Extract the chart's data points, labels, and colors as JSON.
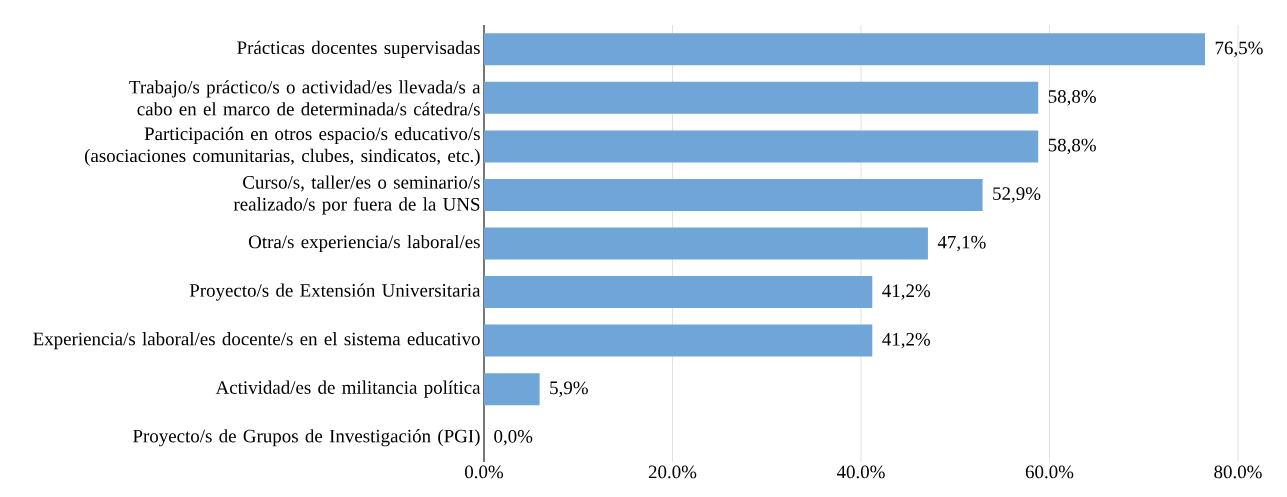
{
  "chart_data": {
    "type": "bar",
    "orientation": "horizontal",
    "categories": [
      "Prácticas docentes supervisadas",
      "Trabajo/s práctico/s o actividad/es llevada/s a cabo en el marco de determinada/s cátedra/s",
      "Participación en otros espacio/s educativo/s (asociaciones comunitarias, clubes, sindicatos, etc.)",
      "Curso/s, taller/es o seminario/s realizado/s por fuera de la UNS",
      "Otra/s experiencia/s laboral/es",
      "Proyecto/s de Extensión Universitaria",
      "Experiencia/s laboral/es docente/s en el sistema educativo",
      "Actividad/es de militancia política",
      "Proyecto/s de Grupos de Investigación (PGI)"
    ],
    "values": [
      76.5,
      58.8,
      58.8,
      52.9,
      47.1,
      41.2,
      41.2,
      5.9,
      0.0
    ],
    "value_labels": [
      "76,5%",
      "58,8%",
      "58,8%",
      "52,9%",
      "47,1%",
      "41,2%",
      "41,2%",
      "5,9%",
      "0,0%"
    ],
    "color": "#6fa6d7",
    "xlim": [
      0,
      80
    ],
    "xticks": [
      {
        "value": 0,
        "label": "0.0%"
      },
      {
        "value": 20,
        "label": "20.0%"
      },
      {
        "value": 40,
        "label": "40.0%"
      },
      {
        "value": 60,
        "label": "60.0%"
      },
      {
        "value": 80,
        "label": "80.0%"
      }
    ],
    "grid": "x"
  }
}
